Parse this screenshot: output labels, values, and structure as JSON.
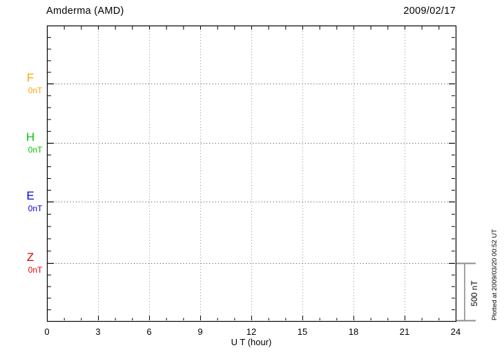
{
  "header": {
    "title": "Amderma (AMD)",
    "date": "2009/02/17"
  },
  "chart_data": {
    "type": "line",
    "title": "Amderma (AMD)",
    "station": "Amderma",
    "station_code": "AMD",
    "date": "2009/02/17",
    "xlabel": "U T (hour)",
    "x_range": [
      0,
      24
    ],
    "x_major_ticks": [
      0,
      3,
      6,
      9,
      12,
      15,
      18,
      21,
      24
    ],
    "x_tick_labels": [
      "0",
      "3",
      "6",
      "9",
      "12",
      "15",
      "18",
      "21",
      "24"
    ],
    "x_minor_tick_step_hours": 1,
    "grid": "dotted vertical lines every 3 hours; dotted horizontal line at each component baseline",
    "y_minor_tick_nT": 100,
    "series": [
      {
        "name": "F",
        "baseline_label": "0nT",
        "baseline_nT": 0,
        "color": "#FFA500",
        "values": []
      },
      {
        "name": "H",
        "baseline_label": "0nT",
        "baseline_nT": 0,
        "color": "#00C400",
        "values": []
      },
      {
        "name": "E",
        "baseline_label": "0nT",
        "baseline_nT": 0,
        "color": "#0000D8",
        "values": []
      },
      {
        "name": "Z",
        "baseline_label": "0nT",
        "baseline_nT": 0,
        "color": "#E80000",
        "values": []
      }
    ],
    "scale_bar": {
      "label": "500 nT",
      "span_nT": 500,
      "color": "#8C8C8C"
    },
    "footnote": "Plotted at 2009/03/20 00:52 UT",
    "note": "No data traces are plotted for this day; only empty axes, grid and 0 nT baselines are visible."
  }
}
